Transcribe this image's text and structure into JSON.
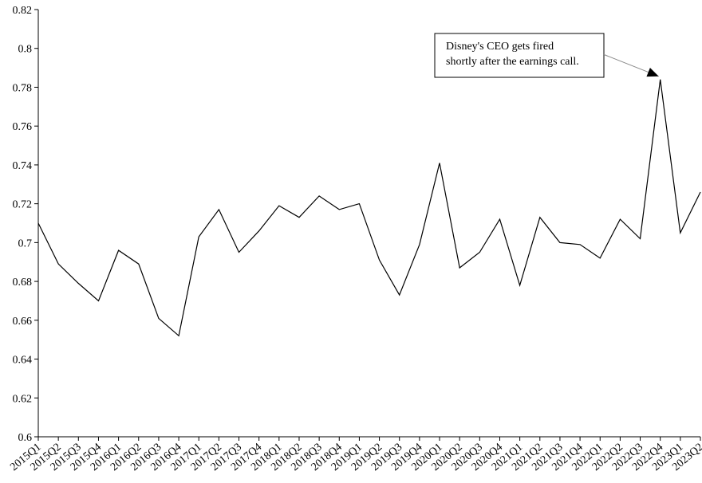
{
  "chart_data": {
    "type": "line",
    "title": "",
    "xlabel": "",
    "ylabel": "",
    "x": [
      "2015Q1",
      "2015Q2",
      "2015Q3",
      "2015Q4",
      "2016Q1",
      "2016Q2",
      "2016Q3",
      "2016Q4",
      "2017Q1",
      "2017Q2",
      "2017Q3",
      "2017Q4",
      "2018Q1",
      "2018Q2",
      "2018Q3",
      "2018Q4",
      "2019Q1",
      "2019Q2",
      "2019Q3",
      "2019Q4",
      "2020Q1",
      "2020Q2",
      "2020Q3",
      "2020Q4",
      "2021Q1",
      "2021Q2",
      "2021Q3",
      "2021Q4",
      "2022Q1",
      "2022Q2",
      "2022Q3",
      "2022Q4",
      "2023Q1",
      "2023Q2"
    ],
    "series": [
      {
        "values": [
          0.71,
          0.689,
          0.679,
          0.67,
          0.696,
          0.689,
          0.661,
          0.652,
          0.703,
          0.717,
          0.695,
          0.706,
          0.719,
          0.713,
          0.724,
          0.717,
          0.72,
          0.691,
          0.673,
          0.699,
          0.741,
          0.687,
          0.695,
          0.712,
          0.678,
          0.713,
          0.7,
          0.699,
          0.692,
          0.712,
          0.702,
          0.784,
          0.705,
          0.726
        ]
      }
    ],
    "ylim": [
      0.6,
      0.82
    ],
    "y_ticks": [
      "0.6",
      "0.62",
      "0.64",
      "0.66",
      "0.68",
      "0.7",
      "0.72",
      "0.74",
      "0.76",
      "0.78",
      "0.8",
      "0.82"
    ],
    "grid": false,
    "legend": "none",
    "line_color": "#000000",
    "annotation": {
      "lines": [
        "Disney's CEO gets fired",
        "shortly after the earnings call."
      ],
      "target_category": "2022Q4",
      "target_value": 0.784
    }
  }
}
